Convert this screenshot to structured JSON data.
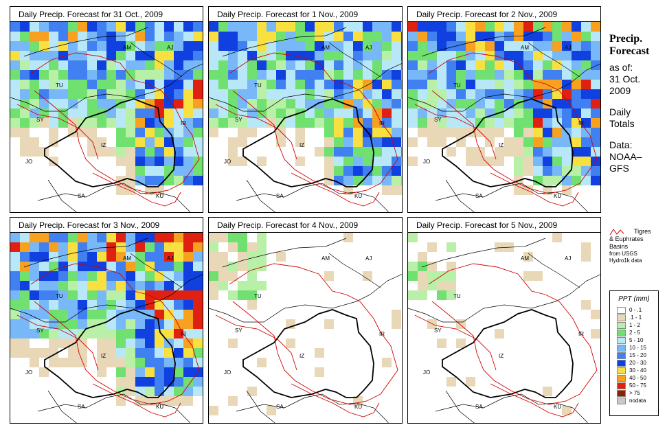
{
  "panels": [
    {
      "title": "Daily Precip. Forecast for  31 Oct., 2009",
      "intensity": 0.85
    },
    {
      "title": "Daily Precip. Forecast for  1 Nov., 2009",
      "intensity": 0.8
    },
    {
      "title": "Daily Precip. Forecast for  2 Nov., 2009",
      "intensity": 0.9
    },
    {
      "title": "Daily Precip. Forecast for  3 Nov., 2009",
      "intensity": 0.95
    },
    {
      "title": "Daily Precip. Forecast for  4 Nov., 2009",
      "intensity": 0.12
    },
    {
      "title": "Daily Precip. Forecast for  5 Nov., 2009",
      "intensity": 0.1
    }
  ],
  "map_labels": [
    "AM",
    "AJ",
    "TU",
    "SY",
    "IR",
    "JO",
    "SA",
    "KU",
    "IZ"
  ],
  "side": {
    "title_line1": "Precip.",
    "title_line2": "Forecast",
    "asof": "as of:",
    "date_line1": "31 Oct.",
    "date_line2": "2009",
    "daily_line1": "Daily",
    "daily_line2": "Totals",
    "data_line1": "Data:",
    "data_line2": "NOAA–",
    "data_line3": "GFS"
  },
  "basin_legend": {
    "line1": "Tigres",
    "line2": "& Euphrates",
    "line3": "Basins",
    "line4": "from USGS",
    "line5": "Hydro1k data"
  },
  "ppt_legend": {
    "title": "PPT (mm)",
    "items": [
      {
        "label": "0 - .1",
        "color": "#ffffff"
      },
      {
        "label": ".1 - 1",
        "color": "#e8d8b8"
      },
      {
        "label": "1 - 2",
        "color": "#b8f0a8"
      },
      {
        "label": "2 - 5",
        "color": "#70e070"
      },
      {
        "label": "5 - 10",
        "color": "#b8e8f8"
      },
      {
        "label": "10 - 15",
        "color": "#78b8f8"
      },
      {
        "label": "15 - 20",
        "color": "#4080f0"
      },
      {
        "label": "20 - 30",
        "color": "#1040e0"
      },
      {
        "label": "30 - 40",
        "color": "#f8e040"
      },
      {
        "label": "40 - 50",
        "color": "#f8a020"
      },
      {
        "label": "50 - 75",
        "color": "#e02010"
      },
      {
        "label": "> 75",
        "color": "#902000"
      },
      {
        "label": "nodata",
        "color": "#c8c8c8"
      }
    ]
  }
}
